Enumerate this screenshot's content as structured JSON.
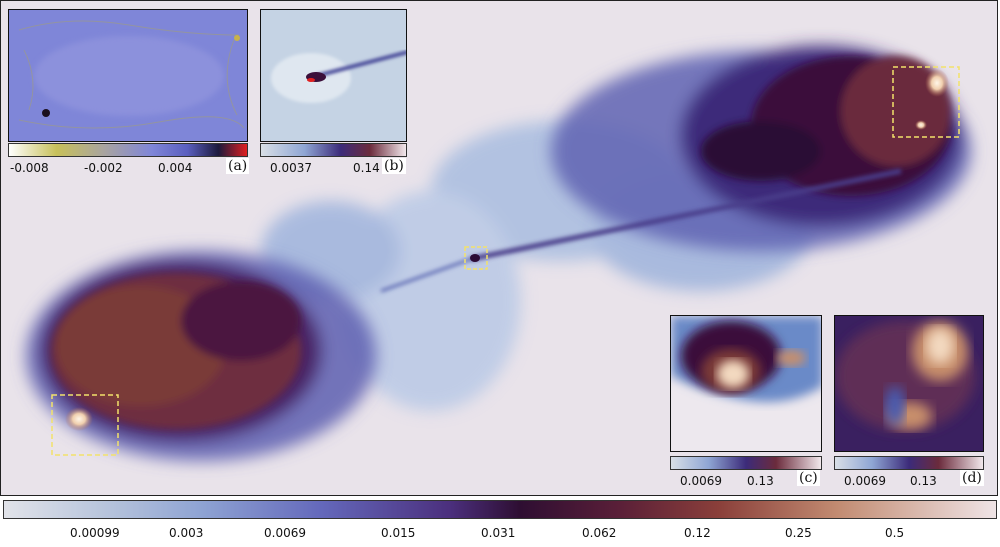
{
  "main_image": {
    "icon": "radio-galaxy-image"
  },
  "insets": {
    "a": {
      "label": "(a)",
      "ticks": [
        "-0.008",
        "-0.002",
        "0.004"
      ]
    },
    "b": {
      "label": "(b)",
      "ticks": [
        "0.0037",
        "0.14"
      ]
    },
    "c": {
      "label": "(c)",
      "ticks": [
        "0.0069",
        "0.13"
      ]
    },
    "d": {
      "label": "(d)",
      "ticks": [
        "0.0069",
        "0.13"
      ]
    }
  },
  "main_colorbar": {
    "ticks": [
      "0.00099",
      "0.003",
      "0.0069",
      "0.015",
      "0.031",
      "0.062",
      "0.12",
      "0.25",
      "0.5"
    ]
  },
  "colors": {
    "background": "#e9e3ea",
    "lobe_dark": "#3b0f3a",
    "lobe_brown": "#7a3b38",
    "diffuse_blue": "#8fa6d4",
    "highlight": "#f3d9c0",
    "box_outline": "#f2e26b"
  }
}
